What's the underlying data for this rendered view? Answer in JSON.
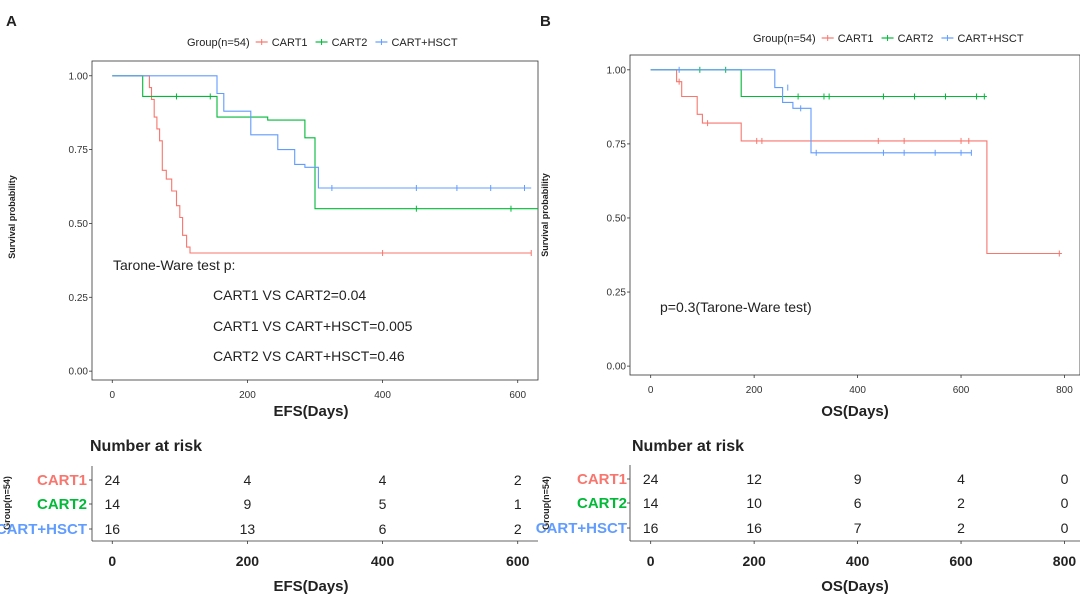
{
  "chart_data": [
    {
      "type": "line",
      "panel_label": "A",
      "legend_title": "Group(n=54)",
      "xlabel": "EFS(Days)",
      "ylabel": "Survival probability",
      "xlim": [
        -30,
        630
      ],
      "ylim": [
        -0.03,
        1.05
      ],
      "xticks": [
        0,
        200,
        400,
        600
      ],
      "yticks": [
        "0.00",
        "0.25",
        "0.50",
        "0.75",
        "1.00"
      ],
      "ytick_values": [
        0,
        0.25,
        0.5,
        0.75,
        1.0
      ],
      "annotations": [
        "Tarone-Ware test p:",
        "CART1 VS CART2=0.04",
        "CART1 VS CART+HSCT=0.005",
        "CART2 VS CART+HSCT=0.46"
      ],
      "series": [
        {
          "name": "CART1",
          "color": "#f8766d",
          "x": [
            0,
            55,
            58,
            62,
            66,
            70,
            74,
            80,
            88,
            95,
            100,
            104,
            110,
            115,
            620
          ],
          "y": [
            1.0,
            0.96,
            0.92,
            0.86,
            0.82,
            0.78,
            0.68,
            0.65,
            0.61,
            0.56,
            0.52,
            0.46,
            0.42,
            0.4,
            0.4
          ],
          "censor_x": [
            400,
            620
          ],
          "censor_y": [
            0.4,
            0.4
          ]
        },
        {
          "name": "CART2",
          "color": "#00ba38",
          "x": [
            0,
            45,
            155,
            230,
            285,
            300,
            630
          ],
          "y": [
            1.0,
            0.93,
            0.86,
            0.85,
            0.79,
            0.55,
            0.55
          ],
          "censor_x": [
            95,
            145,
            450,
            590
          ],
          "censor_y": [
            0.93,
            0.93,
            0.55,
            0.55
          ]
        },
        {
          "name": "CART+HSCT",
          "color": "#619cff",
          "x": [
            0,
            155,
            165,
            205,
            245,
            270,
            285,
            305,
            620
          ],
          "y": [
            1.0,
            0.94,
            0.88,
            0.8,
            0.75,
            0.7,
            0.69,
            0.62,
            0.62
          ],
          "censor_x": [
            325,
            450,
            510,
            560,
            610
          ],
          "censor_y": [
            0.62,
            0.62,
            0.62,
            0.62,
            0.62
          ]
        }
      ],
      "risk_table": {
        "title": "Number at risk",
        "ylabel": "Group(n=54)",
        "xlabel": "EFS(Days)",
        "time_points": [
          0,
          200,
          400,
          600
        ],
        "groups": [
          {
            "name": "CART1",
            "color": "#f8766d",
            "counts": [
              24,
              4,
              4,
              2
            ]
          },
          {
            "name": "CART2",
            "color": "#00ba38",
            "counts": [
              14,
              9,
              5,
              1
            ]
          },
          {
            "name": "CART+HSCT",
            "color": "#619cff",
            "counts": [
              16,
              13,
              6,
              2
            ]
          }
        ]
      }
    },
    {
      "type": "line",
      "panel_label": "B",
      "legend_title": "Group(n=54)",
      "xlabel": "OS(Days)",
      "ylabel": "Survival probability",
      "xlim": [
        -40,
        830
      ],
      "ylim": [
        -0.03,
        1.05
      ],
      "xticks": [
        0,
        200,
        400,
        600,
        800
      ],
      "yticks": [
        "0.00",
        "0.25",
        "0.50",
        "0.75",
        "1.00"
      ],
      "ytick_values": [
        0,
        0.25,
        0.5,
        0.75,
        1.0
      ],
      "annotations": [
        "p=0.3(Tarone-Ware test)"
      ],
      "series": [
        {
          "name": "CART1",
          "color": "#f8766d",
          "x": [
            0,
            50,
            60,
            90,
            100,
            175,
            650,
            795
          ],
          "y": [
            1.0,
            0.96,
            0.91,
            0.85,
            0.82,
            0.76,
            0.38,
            0.38
          ],
          "censor_x": [
            55,
            110,
            205,
            215,
            440,
            490,
            600,
            615,
            790
          ],
          "censor_y": [
            0.96,
            0.82,
            0.76,
            0.76,
            0.76,
            0.76,
            0.76,
            0.76,
            0.38
          ]
        },
        {
          "name": "CART2",
          "color": "#00ba38",
          "x": [
            0,
            175,
            650
          ],
          "y": [
            1.0,
            0.91,
            0.91
          ],
          "censor_x": [
            95,
            145,
            285,
            335,
            345,
            450,
            510,
            570,
            630,
            645
          ],
          "censor_y": [
            1.0,
            1.0,
            0.91,
            0.91,
            0.91,
            0.91,
            0.91,
            0.91,
            0.91,
            0.91
          ]
        },
        {
          "name": "CART+HSCT",
          "color": "#619cff",
          "x": [
            0,
            240,
            255,
            275,
            310,
            620
          ],
          "y": [
            1.0,
            0.94,
            0.89,
            0.87,
            0.72,
            0.72
          ],
          "censor_x": [
            55,
            265,
            290,
            320,
            450,
            490,
            550,
            600,
            620
          ],
          "censor_y": [
            1.0,
            0.94,
            0.87,
            0.72,
            0.72,
            0.72,
            0.72,
            0.72,
            0.72
          ]
        }
      ],
      "risk_table": {
        "title": "Number at risk",
        "ylabel": "Group(n=54)",
        "xlabel": "OS(Days)",
        "time_points": [
          0,
          200,
          400,
          600,
          800
        ],
        "groups": [
          {
            "name": "CART1",
            "color": "#f8766d",
            "counts": [
              24,
              12,
              9,
              4,
              0
            ]
          },
          {
            "name": "CART2",
            "color": "#00ba38",
            "counts": [
              14,
              10,
              6,
              2,
              0
            ]
          },
          {
            "name": "CART+HSCT",
            "color": "#619cff",
            "counts": [
              16,
              16,
              7,
              2,
              0
            ]
          }
        ]
      }
    }
  ]
}
